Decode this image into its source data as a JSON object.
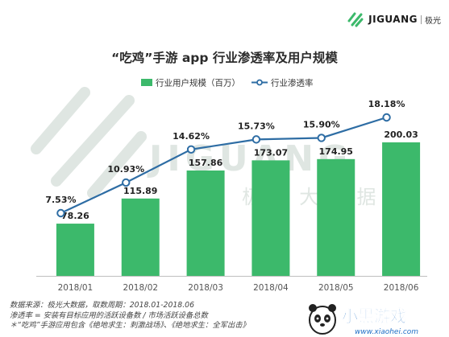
{
  "header": {
    "brand": "JIGUANG",
    "brand_cn": "极光",
    "title": "“吃鸡”手游 app 行业渗透率及用户规模"
  },
  "chart_data": {
    "type": "bar",
    "categories": [
      "2018/01",
      "2018/02",
      "2018/03",
      "2018/04",
      "2018/05",
      "2018/06"
    ],
    "series": [
      {
        "name": "行业用户规模（百万）",
        "type": "bar",
        "values": [
          78.26,
          115.89,
          157.86,
          173.07,
          174.95,
          200.03
        ],
        "labels": [
          "78.26",
          "115.89",
          "157.86",
          "173.07",
          "174.95",
          "200.03"
        ]
      },
      {
        "name": "行业渗透率",
        "type": "line",
        "values": [
          7.53,
          10.93,
          14.62,
          15.73,
          15.9,
          18.18
        ],
        "labels": [
          "7.53%",
          "10.93%",
          "14.62%",
          "15.73%",
          "15.90%",
          "18.18%"
        ]
      }
    ],
    "bar_range": [
      0,
      230
    ],
    "line_range": [
      3,
      20
    ],
    "colors": {
      "bar": "#3cb96b",
      "line": "#2e6da4",
      "marker_fill": "#ffffff",
      "axis": "#bfbfbf"
    }
  },
  "watermark": {
    "text": "JIGUANG",
    "text_cn": "极 光 大 数 据",
    "color": "#dfe6e2"
  },
  "footnotes": [
    "数据来源：极光大数据，取数周期：2018.01-2018.06",
    "渗透率 = 安装有目标应用的活跃设备数 / 市场活跃设备总数",
    "＊“吃鸡”手游应用包含《绝地求生：刺激战场》、《绝地求生：全军出击》"
  ],
  "site_watermark": {
    "text": "小黑游戏",
    "url": "www.xiaohei.com"
  }
}
